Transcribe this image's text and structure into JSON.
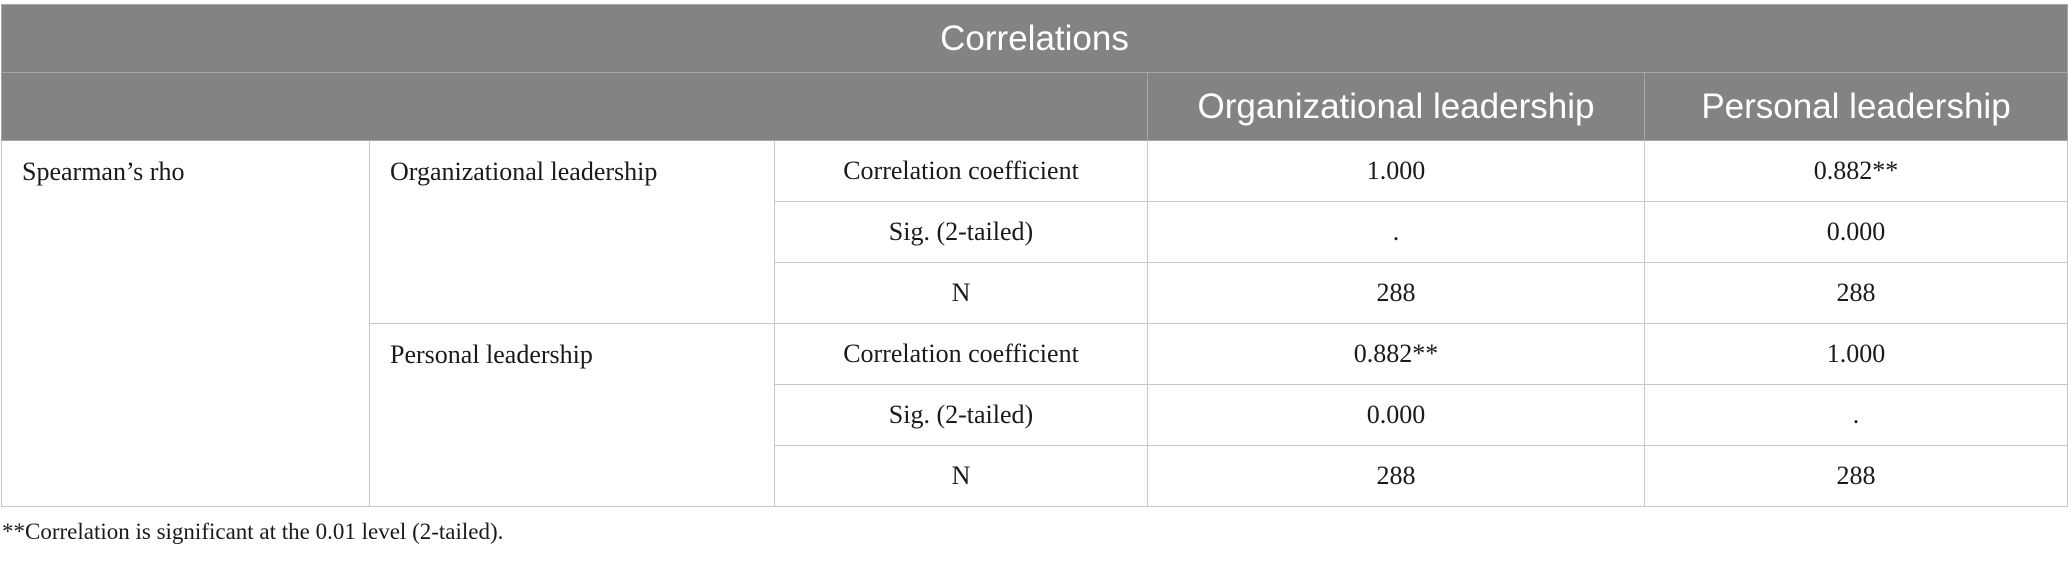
{
  "table": {
    "title": "Correlations",
    "columns": [
      "Organizational leadership",
      "Personal leadership"
    ],
    "method": "Spearman’s rho",
    "groups": [
      {
        "variable": "Organizational leadership",
        "rows": [
          {
            "stat": "Correlation coefficient",
            "values": [
              "1.000",
              "0.882**"
            ]
          },
          {
            "stat": "Sig. (2-tailed)",
            "values": [
              ".",
              "0.000"
            ]
          },
          {
            "stat": "N",
            "values": [
              "288",
              "288"
            ]
          }
        ]
      },
      {
        "variable": "Personal leadership",
        "rows": [
          {
            "stat": "Correlation coefficient",
            "values": [
              "0.882**",
              "1.000"
            ]
          },
          {
            "stat": "Sig. (2-tailed)",
            "values": [
              "0.000",
              "."
            ]
          },
          {
            "stat": "N",
            "values": [
              "288",
              "288"
            ]
          }
        ]
      }
    ],
    "footnote": "**Correlation is significant at the 0.01 level (2-tailed)."
  }
}
